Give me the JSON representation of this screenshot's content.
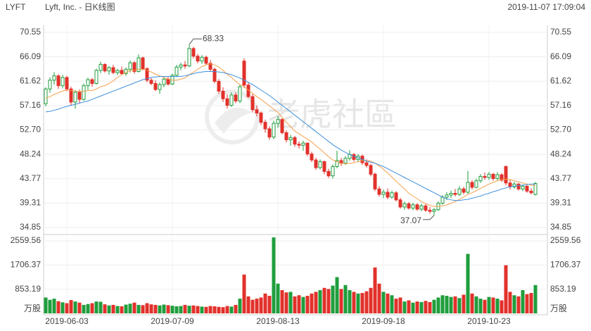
{
  "header": {
    "symbol": "LYFT",
    "name": "Lyft, Inc. - 日K线图",
    "timestamp": "2019-11-07 17:09:04"
  },
  "watermark": "老虎社區",
  "chart_data": {
    "type": "candlestick",
    "categories": [
      null,
      null,
      null,
      null,
      null,
      "2019-06-03",
      null,
      null,
      null,
      null,
      null,
      null,
      null,
      null,
      null,
      null,
      null,
      null,
      null,
      null,
      null,
      null,
      null,
      null,
      null,
      null,
      null,
      null,
      null,
      null,
      "2019-07-09",
      null,
      null,
      null,
      null,
      null,
      null,
      null,
      null,
      null,
      null,
      null,
      null,
      null,
      null,
      null,
      null,
      null,
      null,
      null,
      null,
      null,
      null,
      null,
      null,
      "2019-08-13",
      null,
      null,
      null,
      null,
      null,
      null,
      null,
      null,
      null,
      null,
      null,
      null,
      null,
      null,
      null,
      null,
      null,
      null,
      null,
      null,
      null,
      null,
      null,
      null,
      "2019-09-18",
      null,
      null,
      null,
      null,
      null,
      null,
      null,
      null,
      null,
      null,
      null,
      null,
      null,
      null,
      null,
      null,
      null,
      null,
      null,
      null,
      null,
      null,
      null,
      null,
      "2019-10-23",
      null,
      null,
      null,
      null,
      null,
      null,
      null,
      null,
      null,
      null,
      null
    ],
    "ohlc": [
      [
        57.5,
        60.5,
        57.0,
        60.2
      ],
      [
        60.2,
        62.3,
        59.5,
        61.8
      ],
      [
        61.8,
        63.3,
        61.0,
        62.6
      ],
      [
        62.6,
        62.9,
        60.2,
        60.8
      ],
      [
        60.8,
        62.8,
        60.3,
        62.3
      ],
      [
        62.3,
        62.6,
        59.8,
        60.2
      ],
      [
        60.2,
        60.6,
        57.1,
        57.8
      ],
      [
        57.8,
        60.0,
        56.6,
        59.6
      ],
      [
        59.6,
        60.1,
        57.6,
        58.3
      ],
      [
        58.3,
        61.2,
        58.0,
        60.8
      ],
      [
        60.8,
        62.3,
        60.0,
        61.9
      ],
      [
        61.9,
        62.2,
        60.6,
        61.2
      ],
      [
        61.2,
        63.9,
        61.0,
        63.6
      ],
      [
        63.6,
        65.2,
        63.1,
        64.7
      ],
      [
        64.7,
        64.9,
        63.2,
        63.5
      ],
      [
        63.5,
        64.4,
        62.8,
        64.1
      ],
      [
        64.1,
        64.6,
        62.9,
        63.2
      ],
      [
        63.2,
        63.9,
        62.7,
        63.6
      ],
      [
        63.6,
        64.3,
        62.9,
        63.0
      ],
      [
        63.0,
        64.1,
        62.6,
        63.8
      ],
      [
        63.8,
        65.4,
        63.2,
        65.0
      ],
      [
        65.0,
        65.3,
        63.0,
        63.4
      ],
      [
        63.4,
        66.5,
        63.2,
        65.9
      ],
      [
        65.9,
        66.1,
        63.6,
        63.9
      ],
      [
        63.9,
        64.2,
        61.4,
        61.8
      ],
      [
        61.8,
        62.2,
        60.9,
        61.2
      ],
      [
        61.2,
        61.8,
        59.8,
        60.1
      ],
      [
        60.1,
        61.4,
        59.3,
        61.0
      ],
      [
        61.0,
        62.3,
        60.5,
        62.0
      ],
      [
        62.0,
        62.4,
        60.8,
        61.1
      ],
      [
        61.1,
        63.0,
        60.9,
        62.7
      ],
      [
        62.7,
        64.6,
        62.4,
        64.2
      ],
      [
        64.2,
        65.0,
        63.6,
        64.6
      ],
      [
        64.6,
        65.3,
        63.9,
        64.4
      ],
      [
        64.4,
        68.33,
        64.2,
        67.6
      ],
      [
        67.6,
        67.9,
        65.8,
        66.2
      ],
      [
        66.2,
        66.6,
        64.9,
        65.3
      ],
      [
        65.3,
        66.4,
        64.8,
        66.0
      ],
      [
        66.0,
        66.3,
        64.6,
        64.9
      ],
      [
        64.9,
        65.5,
        63.4,
        63.8
      ],
      [
        63.8,
        64.1,
        61.2,
        61.6
      ],
      [
        61.6,
        62.0,
        59.3,
        59.8
      ],
      [
        59.8,
        60.5,
        57.8,
        58.4
      ],
      [
        58.4,
        59.2,
        56.6,
        57.2
      ],
      [
        57.2,
        59.6,
        56.9,
        59.1
      ],
      [
        59.1,
        59.6,
        57.6,
        58.0
      ],
      [
        58.0,
        61.0,
        57.6,
        60.6
      ],
      [
        65.3,
        65.8,
        60.4,
        60.9
      ],
      [
        60.9,
        61.3,
        58.5,
        58.8
      ],
      [
        58.8,
        59.3,
        55.9,
        56.4
      ],
      [
        56.4,
        57.2,
        55.2,
        55.8
      ],
      [
        55.8,
        56.1,
        53.6,
        54.1
      ],
      [
        54.1,
        54.6,
        52.2,
        52.9
      ],
      [
        52.9,
        53.4,
        50.9,
        51.4
      ],
      [
        51.4,
        54.4,
        51.0,
        53.9
      ],
      [
        53.9,
        55.3,
        53.1,
        54.6
      ],
      [
        54.6,
        54.8,
        51.9,
        52.2
      ],
      [
        52.2,
        52.6,
        50.4,
        50.9
      ],
      [
        50.9,
        51.8,
        49.8,
        51.3
      ],
      [
        51.3,
        51.6,
        49.6,
        50.1
      ],
      [
        50.1,
        50.6,
        49.3,
        49.9
      ],
      [
        49.9,
        50.7,
        48.9,
        50.3
      ],
      [
        50.3,
        50.4,
        47.9,
        48.3
      ],
      [
        48.3,
        48.7,
        46.8,
        47.2
      ],
      [
        47.2,
        47.6,
        45.4,
        45.8
      ],
      [
        45.8,
        47.3,
        45.5,
        46.9
      ],
      [
        46.9,
        47.1,
        44.6,
        45.1
      ],
      [
        45.1,
        45.6,
        43.9,
        44.3
      ],
      [
        44.3,
        46.4,
        43.8,
        46.0
      ],
      [
        46.0,
        48.9,
        45.7,
        47.1
      ],
      [
        47.1,
        47.6,
        46.1,
        46.6
      ],
      [
        46.6,
        47.9,
        46.3,
        47.5
      ],
      [
        47.5,
        49.0,
        47.1,
        48.2
      ],
      [
        48.2,
        48.5,
        46.9,
        47.3
      ],
      [
        47.3,
        48.3,
        46.8,
        47.9
      ],
      [
        47.9,
        48.2,
        46.3,
        46.7
      ],
      [
        46.7,
        47.3,
        45.8,
        46.2
      ],
      [
        46.2,
        46.5,
        44.2,
        44.6
      ],
      [
        44.6,
        44.9,
        41.5,
        41.9
      ],
      [
        41.9,
        42.4,
        40.5,
        40.9
      ],
      [
        40.9,
        41.8,
        40.2,
        41.3
      ],
      [
        41.3,
        42.0,
        40.0,
        40.4
      ],
      [
        40.4,
        41.6,
        40.1,
        41.2
      ],
      [
        41.2,
        41.5,
        39.6,
        39.9
      ],
      [
        39.9,
        40.3,
        38.3,
        38.6
      ],
      [
        38.6,
        39.6,
        38.1,
        39.2
      ],
      [
        39.2,
        39.5,
        38.1,
        38.4
      ],
      [
        38.4,
        39.4,
        38.0,
        39.0
      ],
      [
        39.0,
        39.3,
        37.9,
        38.2
      ],
      [
        38.2,
        39.2,
        37.8,
        38.8
      ],
      [
        38.8,
        39.1,
        37.7,
        38.0
      ],
      [
        38.0,
        38.6,
        37.4,
        37.8
      ],
      [
        37.8,
        38.4,
        37.07,
        38.1
      ],
      [
        38.1,
        39.6,
        37.9,
        39.3
      ],
      [
        39.3,
        40.8,
        39.0,
        40.4
      ],
      [
        40.4,
        41.3,
        39.9,
        40.8
      ],
      [
        40.8,
        41.6,
        40.2,
        41.1
      ],
      [
        41.1,
        41.9,
        40.5,
        40.9
      ],
      [
        40.9,
        42.4,
        40.6,
        41.9
      ],
      [
        41.9,
        42.3,
        40.9,
        41.3
      ],
      [
        41.3,
        45.2,
        41.0,
        43.1
      ],
      [
        43.1,
        43.5,
        41.8,
        42.2
      ],
      [
        42.2,
        43.8,
        42.0,
        43.4
      ],
      [
        43.4,
        44.6,
        43.0,
        44.2
      ],
      [
        44.2,
        44.9,
        43.6,
        44.0
      ],
      [
        44.0,
        45.0,
        43.6,
        44.6
      ],
      [
        44.6,
        44.8,
        43.4,
        43.8
      ],
      [
        43.8,
        45.0,
        43.5,
        44.5
      ],
      [
        44.5,
        44.8,
        43.2,
        43.5
      ],
      [
        46.0,
        46.2,
        42.5,
        43.0
      ],
      [
        43.0,
        43.6,
        41.8,
        42.3
      ],
      [
        42.3,
        43.2,
        41.9,
        42.8
      ],
      [
        42.8,
        43.0,
        41.6,
        41.9
      ],
      [
        41.9,
        42.7,
        41.5,
        42.4
      ],
      [
        42.4,
        42.6,
        41.2,
        41.5
      ],
      [
        41.5,
        42.0,
        40.9,
        41.2
      ],
      [
        40.9,
        43.2,
        40.7,
        42.9
      ]
    ],
    "up_color": "#1f9e3c",
    "down_color": "#e2312b",
    "ylim": [
      34.85,
      70.55
    ],
    "yticks": [
      70.55,
      66.09,
      61.62,
      57.16,
      {
        "value": 52.7,
        "label": "52.70"
      },
      48.24,
      43.77,
      39.31,
      34.85
    ],
    "grid": true,
    "ma": [
      {
        "color": "#f5a04a",
        "values": [
          58.5,
          58.8,
          59.2,
          59.5,
          59.8,
          60.0,
          59.9,
          59.8,
          59.7,
          59.8,
          59.9,
          59.9,
          60.2,
          60.6,
          60.8,
          61.2,
          61.7,
          62.3,
          62.8,
          63.2,
          63.6,
          63.6,
          63.8,
          63.8,
          63.6,
          63.3,
          62.9,
          62.6,
          62.3,
          62.0,
          61.8,
          61.8,
          62.0,
          62.2,
          62.8,
          63.3,
          63.8,
          64.3,
          64.6,
          64.8,
          64.6,
          64.2,
          63.6,
          62.9,
          62.3,
          61.6,
          61.0,
          60.6,
          60.0,
          59.4,
          58.8,
          58.3,
          57.7,
          57.1,
          56.5,
          55.9,
          55.0,
          54.1,
          53.3,
          52.5,
          52.0,
          51.5,
          51.0,
          50.5,
          49.8,
          49.2,
          48.5,
          47.8,
          47.2,
          46.9,
          46.6,
          46.5,
          46.6,
          46.7,
          46.9,
          47.1,
          47.1,
          47.0,
          46.6,
          46.1,
          45.5,
          44.8,
          44.1,
          43.3,
          42.6,
          41.9,
          41.1,
          40.6,
          40.1,
          39.6,
          39.2,
          38.9,
          38.7,
          38.7,
          38.8,
          39.0,
          39.3,
          39.6,
          40.0,
          40.4,
          40.9,
          41.2,
          41.6,
          42.0,
          42.4,
          42.8,
          43.1,
          43.4,
          43.6,
          43.7,
          43.6,
          43.4,
          43.2,
          43.0,
          42.8,
          42.6,
          42.5
        ]
      },
      {
        "color": "#3d8fdb",
        "values": [
          56.0,
          56.1,
          56.3,
          56.5,
          56.8,
          57.0,
          57.2,
          57.4,
          57.6,
          57.8,
          58.0,
          58.3,
          58.6,
          58.9,
          59.2,
          59.5,
          59.8,
          60.1,
          60.4,
          60.7,
          61.0,
          61.3,
          61.6,
          61.9,
          62.1,
          62.3,
          62.4,
          62.5,
          62.5,
          62.5,
          62.5,
          62.5,
          62.5,
          62.6,
          62.8,
          63.0,
          63.2,
          63.3,
          63.4,
          63.4,
          63.4,
          63.3,
          63.2,
          63.0,
          62.8,
          62.5,
          62.2,
          61.8,
          61.4,
          61.0,
          60.5,
          60.0,
          59.5,
          59.0,
          58.4,
          57.8,
          57.2,
          56.6,
          56.0,
          55.4,
          54.8,
          54.2,
          53.6,
          53.0,
          52.4,
          51.8,
          51.2,
          50.6,
          50.0,
          49.5,
          49.0,
          48.6,
          48.2,
          47.9,
          47.6,
          47.3,
          47.0,
          46.8,
          46.6,
          46.3,
          46.0,
          45.6,
          45.2,
          44.8,
          44.4,
          44.0,
          43.6,
          43.2,
          42.8,
          42.4,
          42.0,
          41.6,
          41.2,
          40.8,
          40.4,
          40.1,
          39.9,
          39.8,
          39.8,
          39.9,
          40.0,
          40.2,
          40.4,
          40.6,
          40.9,
          41.1,
          41.4,
          41.6,
          41.9,
          42.1,
          42.3,
          42.4,
          42.5,
          42.6,
          42.7,
          42.8,
          42.8
        ]
      }
    ],
    "volume": {
      "unit": "万股",
      "ylim": [
        0,
        2559.56
      ],
      "yticks": [
        2559.56,
        1706.37,
        853.19
      ],
      "values": [
        560,
        480,
        520,
        430,
        390,
        360,
        470,
        420,
        380,
        300,
        330,
        360,
        420,
        410,
        320,
        280,
        300,
        260,
        250,
        310,
        340,
        380,
        300,
        290,
        360,
        320,
        300,
        280,
        310,
        290,
        270,
        250,
        260,
        300,
        270,
        280,
        260,
        240,
        230,
        260,
        250,
        230,
        220,
        260,
        240,
        300,
        520,
        1370,
        600,
        480,
        520,
        560,
        700,
        620,
        2680,
        1050,
        820,
        740,
        760,
        600,
        640,
        580,
        620,
        700,
        760,
        820,
        900,
        860,
        980,
        1280,
        860,
        1000,
        820,
        760,
        700,
        720,
        780,
        900,
        1620,
        1050,
        760,
        700,
        640,
        520,
        560,
        420,
        460,
        380,
        420,
        400,
        440,
        400,
        480,
        560,
        640,
        620,
        580,
        600,
        540,
        660,
        2100,
        700,
        600,
        520,
        480,
        580,
        560,
        520,
        460,
        1700,
        760,
        640,
        600,
        820,
        680,
        720,
        1000
      ]
    }
  }
}
